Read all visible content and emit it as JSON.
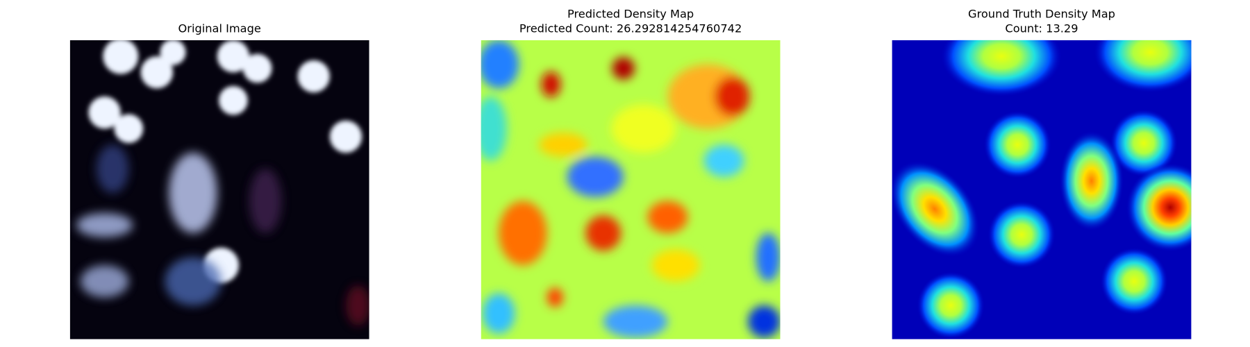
{
  "panels": [
    {
      "title": "Original Image"
    },
    {
      "title": "Predicted Density Map",
      "subtitle": "Predicted Count: 26.292814254760742"
    },
    {
      "title": "Ground Truth Density Map",
      "subtitle": "Count: 13.29"
    }
  ]
}
